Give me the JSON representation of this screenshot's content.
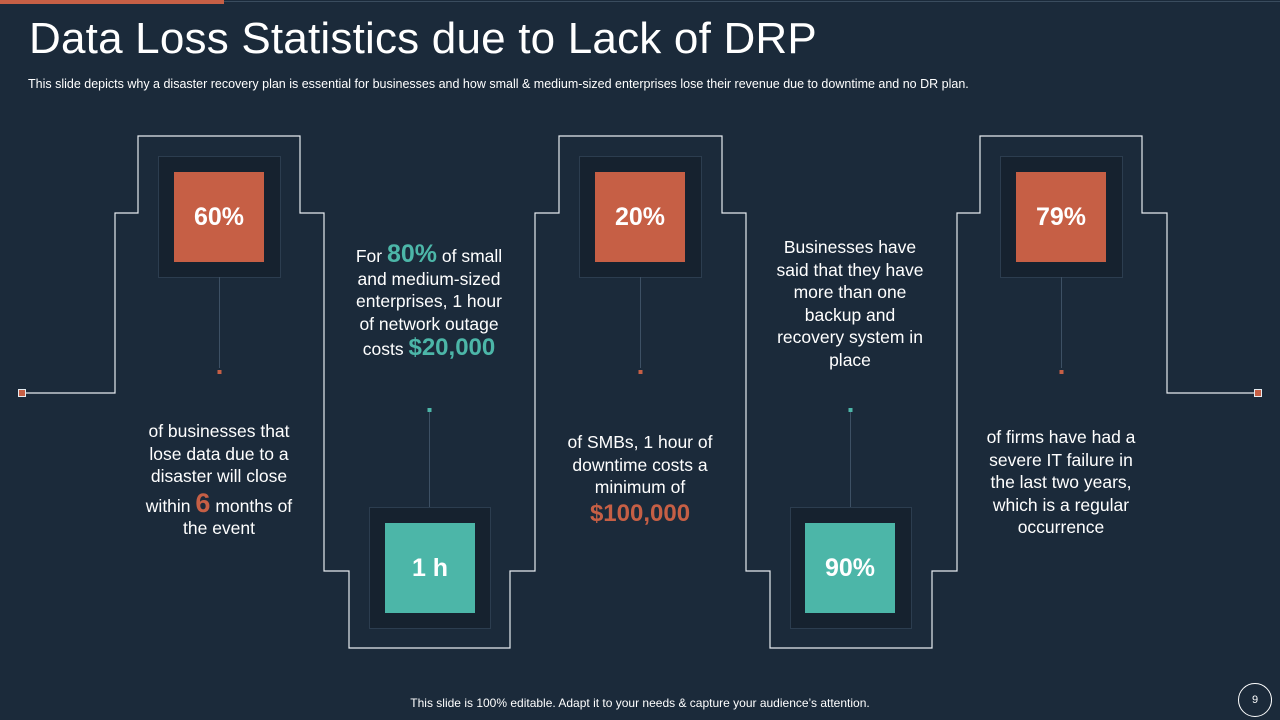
{
  "slide": {
    "title": "Data Loss Statistics due to Lack of DRP",
    "subtitle": "This slide depicts why a disaster recovery  plan is essential for businesses and how small & medium-sized enterprises lose their revenue  due to downtime and no DR plan.",
    "footer": "This slide is 100% editable. Adapt it to your needs & capture your audience’s attention.",
    "page_number": "9"
  },
  "stats": [
    {
      "value": "60%",
      "desc_line1": "of businesses that",
      "desc_line2": "lose data due to a",
      "desc_line3": "disaster will close",
      "desc_within": "within",
      "desc_big": "6",
      "desc_months": "months of",
      "desc_last": "the event"
    },
    {
      "value": "1 h",
      "desc_for": "For",
      "desc_big": "80%",
      "desc_small": "of small",
      "desc_line2": "and medium-sized",
      "desc_line3": "enterprises, 1 hour",
      "desc_line4": "of network outage",
      "desc_costs": "costs",
      "desc_money": "$20,000"
    },
    {
      "value": "20%",
      "desc_line1": "of SMBs, 1 hour of",
      "desc_line2": "downtime costs a",
      "desc_line3": "minimum of",
      "desc_money": "$100,000"
    },
    {
      "value": "90%",
      "desc_line1": "Businesses have",
      "desc_line2": "said that they have",
      "desc_line3": "more than one",
      "desc_line4": "backup and",
      "desc_line5": "recovery system in",
      "desc_line6": "place"
    },
    {
      "value": "79%",
      "desc_line1": "of firms have had a",
      "desc_line2": "severe IT failure in",
      "desc_line3": "the last two years,",
      "desc_line4": "which is a regular",
      "desc_line5": "occurrence"
    }
  ],
  "colors": {
    "background": "#1b2a3a",
    "accent_orange": "#c65f45",
    "accent_teal": "#4cb6a8"
  }
}
